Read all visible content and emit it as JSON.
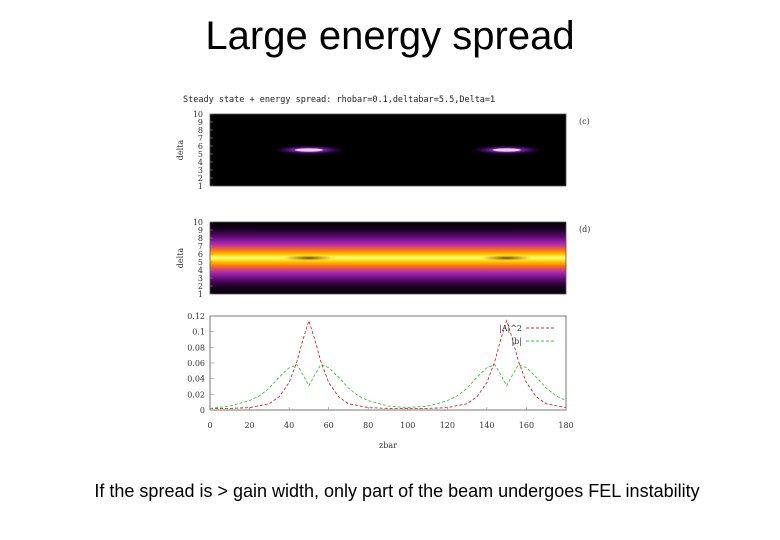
{
  "slide": {
    "title": "Large energy spread",
    "caption": "If the spread is > gain width, only part of the beam undergoes FEL instability"
  },
  "chart_data": [
    {
      "type": "heatmap",
      "title": "Steady state + energy spread: rhobar=0.1,deltabar=5.5,Delta=1",
      "panel_label": "(c)",
      "ylabel": "delta",
      "xlim": [
        0,
        180
      ],
      "ylim": [
        1,
        10
      ],
      "y_ticks": [
        "1",
        "2",
        "3",
        "4",
        "5",
        "6",
        "7",
        "8",
        "9",
        "10"
      ],
      "colormap": [
        "#000000",
        "#3a0060",
        "#8a1fb4",
        "#c04fff",
        "#e06050",
        "#ff9000",
        "#ffe000",
        "#ffff80"
      ],
      "hot_spots": [
        {
          "x": 50,
          "delta": 5.5,
          "peak": 0.85
        },
        {
          "x": 150,
          "delta": 5.5,
          "peak": 0.85
        }
      ]
    },
    {
      "type": "heatmap",
      "panel_label": "(d)",
      "ylabel": "delta",
      "xlim": [
        0,
        180
      ],
      "ylim": [
        1,
        10
      ],
      "y_ticks": [
        "1",
        "2",
        "3",
        "4",
        "5",
        "6",
        "7",
        "8",
        "9",
        "10"
      ],
      "band_center_delta": 5.5,
      "dark_spots": [
        {
          "x": 50,
          "delta": 5.5
        },
        {
          "x": 150,
          "delta": 5.5
        }
      ]
    },
    {
      "type": "line",
      "xlabel": "zbar",
      "xlim": [
        0,
        180
      ],
      "ylim": [
        0,
        0.12
      ],
      "x_ticks": [
        "0",
        "20",
        "40",
        "60",
        "80",
        "100",
        "120",
        "140",
        "160",
        "180"
      ],
      "y_ticks": [
        "0",
        "0.02",
        "0.04",
        "0.06",
        "0.08",
        "0.1",
        "0.12"
      ],
      "series": [
        {
          "name": "|A|^2",
          "color": "#cc2b2b",
          "dash": "3,2",
          "x": [
            0,
            10,
            20,
            30,
            35,
            40,
            44,
            47,
            50,
            53,
            56,
            60,
            65,
            70,
            80,
            90,
            100,
            110,
            120,
            130,
            135,
            140,
            144,
            147,
            150,
            153,
            156,
            160,
            165,
            170,
            180
          ],
          "y": [
            0.002,
            0.002,
            0.003,
            0.008,
            0.017,
            0.035,
            0.062,
            0.09,
            0.114,
            0.09,
            0.062,
            0.035,
            0.017,
            0.008,
            0.003,
            0.002,
            0.002,
            0.002,
            0.003,
            0.008,
            0.017,
            0.035,
            0.062,
            0.09,
            0.114,
            0.09,
            0.062,
            0.035,
            0.017,
            0.008,
            0.003
          ]
        },
        {
          "name": "|b|",
          "color": "#33cc33",
          "dash": "3,2",
          "x": [
            0,
            10,
            20,
            25,
            30,
            35,
            40,
            44,
            47,
            50,
            53,
            56,
            60,
            65,
            70,
            75,
            80,
            90,
            100,
            110,
            115,
            120,
            125,
            130,
            135,
            140,
            144,
            147,
            150,
            153,
            156,
            160,
            165,
            170,
            175,
            180
          ],
          "y": [
            0.002,
            0.005,
            0.012,
            0.018,
            0.028,
            0.042,
            0.054,
            0.058,
            0.045,
            0.031,
            0.045,
            0.058,
            0.054,
            0.042,
            0.028,
            0.018,
            0.012,
            0.005,
            0.003,
            0.005,
            0.008,
            0.012,
            0.018,
            0.028,
            0.042,
            0.054,
            0.058,
            0.045,
            0.031,
            0.045,
            0.058,
            0.054,
            0.042,
            0.028,
            0.018,
            0.012
          ]
        }
      ]
    }
  ]
}
